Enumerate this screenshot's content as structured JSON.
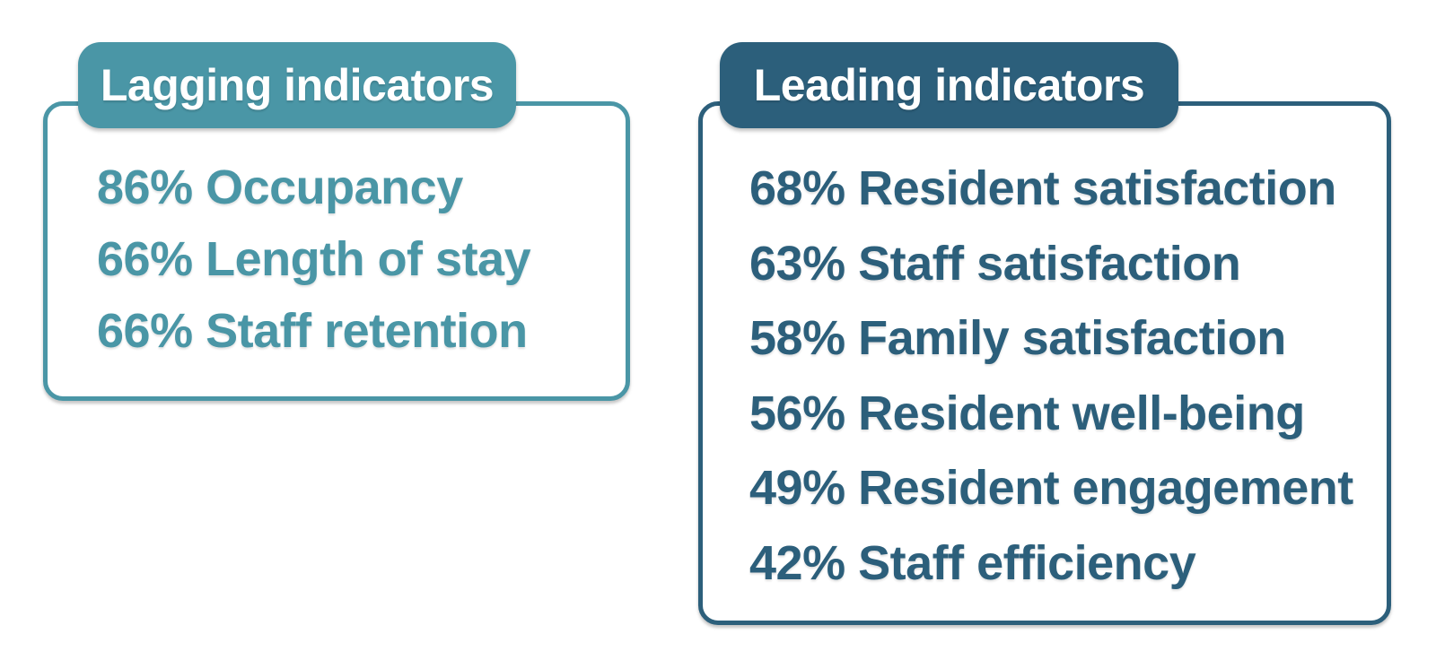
{
  "colors": {
    "teal": "#4A96A6",
    "dark_blue": "#2C5F7B",
    "tab_text": "#FFFFFF",
    "background": "#FFFFFF"
  },
  "panels": {
    "lagging": {
      "title": "Lagging indicators",
      "items": [
        {
          "percent": "86%",
          "label": "Occupancy"
        },
        {
          "percent": "66%",
          "label": "Length of stay"
        },
        {
          "percent": "66%",
          "label": "Staff retention"
        }
      ]
    },
    "leading": {
      "title": "Leading indicators",
      "items": [
        {
          "percent": "68%",
          "label": "Resident satisfaction"
        },
        {
          "percent": "63%",
          "label": "Staff satisfaction"
        },
        {
          "percent": "58%",
          "label": "Family satisfaction"
        },
        {
          "percent": "56%",
          "label": "Resident well-being"
        },
        {
          "percent": "49%",
          "label": "Resident engagement"
        },
        {
          "percent": "42%",
          "label": "Staff efficiency"
        }
      ]
    }
  }
}
